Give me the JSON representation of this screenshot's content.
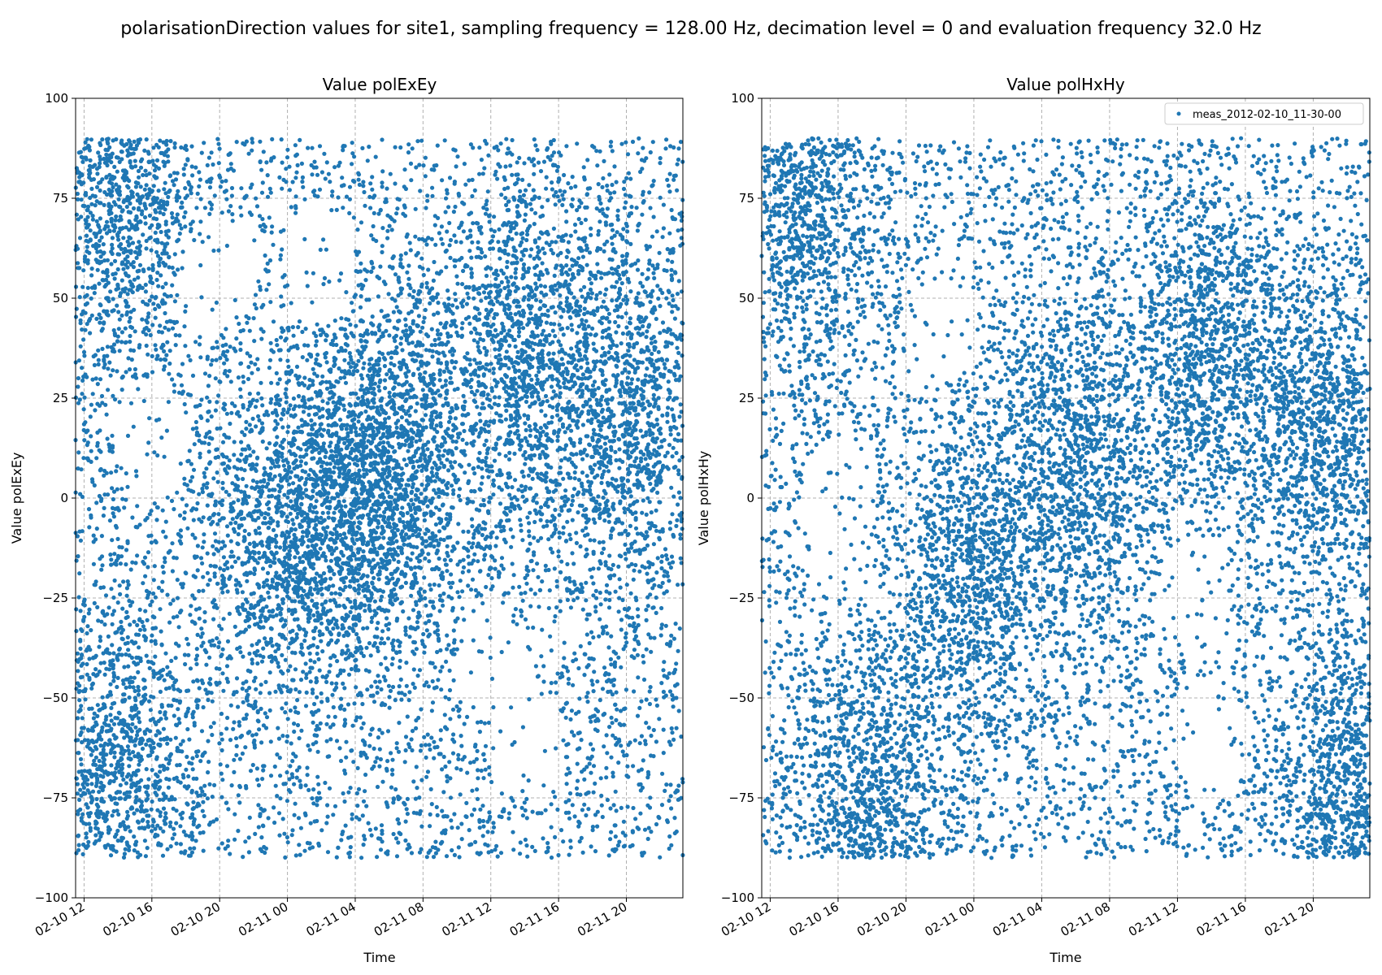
{
  "figure": {
    "suptitle": "polarisationDirection values for site1, sampling frequency = 128.00 Hz, decimation level = 0 and evaluation frequency 32.0 Hz"
  },
  "colors": {
    "series": "#1f77b4",
    "grid": "#b0b0b0",
    "axis": "#000000",
    "background": "#ffffff"
  },
  "chart_data": [
    {
      "type": "scatter",
      "title": "Value polExEy",
      "xlabel": "Time",
      "ylabel": "Value polExEy",
      "xlim": [
        "2012-02-10 11:30",
        "2012-02-11 23:20"
      ],
      "ylim": [
        -100,
        100
      ],
      "xticks": [
        "2012-02-10 12:00",
        "2012-02-10 16:00",
        "2012-02-10 20:00",
        "2012-02-11 00:00",
        "2012-02-11 04:00",
        "2012-02-11 08:00",
        "2012-02-11 12:00",
        "2012-02-11 16:00",
        "2012-02-11 20:00"
      ],
      "xtick_labels": [
        "02-10 12",
        "02-10 16",
        "02-10 20",
        "02-11 00",
        "02-11 04",
        "02-11 08",
        "02-11 12",
        "02-11 16",
        "02-11 20"
      ],
      "yticks": [
        100,
        75,
        50,
        25,
        0,
        -25,
        -50,
        -75,
        -100
      ],
      "ytick_labels": [
        "100",
        "75",
        "50",
        "25",
        "0",
        "−25",
        "−50",
        "−75",
        "−100"
      ],
      "grid": true,
      "legend": null,
      "series": [
        {
          "name": "meas_2012-02-10_11-30-00",
          "y_range": [
            -90,
            90
          ],
          "density_hotspots": [
            {
              "x": "2012-02-10 14:00",
              "y": 75
            },
            {
              "x": "2012-02-10 14:00",
              "y": -70
            },
            {
              "x": "2012-02-11 00:00",
              "y": -10
            },
            {
              "x": "2012-02-11 04:00",
              "y": 0
            },
            {
              "x": "2012-02-11 07:00",
              "y": 10
            },
            {
              "x": "2012-02-11 14:00",
              "y": 35
            },
            {
              "x": "2012-02-11 20:00",
              "y": 20
            }
          ],
          "sparse_regions": [
            {
              "x": "2012-02-10 16:00",
              "y": 15
            },
            {
              "x": "2012-02-10 20:00",
              "y": 55
            },
            {
              "x": "2012-02-11 02:00",
              "y": 60
            },
            {
              "x": "2012-02-11 12:00",
              "y": -40
            },
            {
              "x": "2012-02-11 14:00",
              "y": -60
            }
          ]
        }
      ]
    },
    {
      "type": "scatter",
      "title": "Value polHxHy",
      "xlabel": "Time",
      "ylabel": "Value polHxHy",
      "xlim": [
        "2012-02-10 11:30",
        "2012-02-11 23:20"
      ],
      "ylim": [
        -100,
        100
      ],
      "xticks": [
        "2012-02-10 12:00",
        "2012-02-10 16:00",
        "2012-02-10 20:00",
        "2012-02-11 00:00",
        "2012-02-11 04:00",
        "2012-02-11 08:00",
        "2012-02-11 12:00",
        "2012-02-11 16:00",
        "2012-02-11 20:00"
      ],
      "xtick_labels": [
        "02-10 12",
        "02-10 16",
        "02-10 20",
        "02-11 00",
        "02-11 04",
        "02-11 08",
        "02-11 12",
        "02-11 16",
        "02-11 20"
      ],
      "yticks": [
        100,
        75,
        50,
        25,
        0,
        -25,
        -50,
        -75,
        -100
      ],
      "ytick_labels": [
        "100",
        "75",
        "50",
        "25",
        "0",
        "−25",
        "−50",
        "−75",
        "−100"
      ],
      "grid": true,
      "legend": "upper right",
      "series": [
        {
          "name": "meas_2012-02-10_11-30-00",
          "y_range": [
            -90,
            90
          ],
          "density_hotspots": [
            {
              "x": "2012-02-10 14:00",
              "y": 75
            },
            {
              "x": "2012-02-10 18:00",
              "y": -75
            },
            {
              "x": "2012-02-11 00:00",
              "y": -20
            },
            {
              "x": "2012-02-11 06:00",
              "y": 10
            },
            {
              "x": "2012-02-11 14:00",
              "y": 35
            },
            {
              "x": "2012-02-11 21:00",
              "y": 15
            },
            {
              "x": "2012-02-11 22:00",
              "y": -75
            }
          ],
          "sparse_regions": [
            {
              "x": "2012-02-10 16:00",
              "y": 0
            },
            {
              "x": "2012-02-10 22:00",
              "y": 45
            },
            {
              "x": "2012-02-11 14:00",
              "y": -60
            },
            {
              "x": "2012-02-11 13:00",
              "y": -25
            }
          ]
        }
      ]
    }
  ]
}
